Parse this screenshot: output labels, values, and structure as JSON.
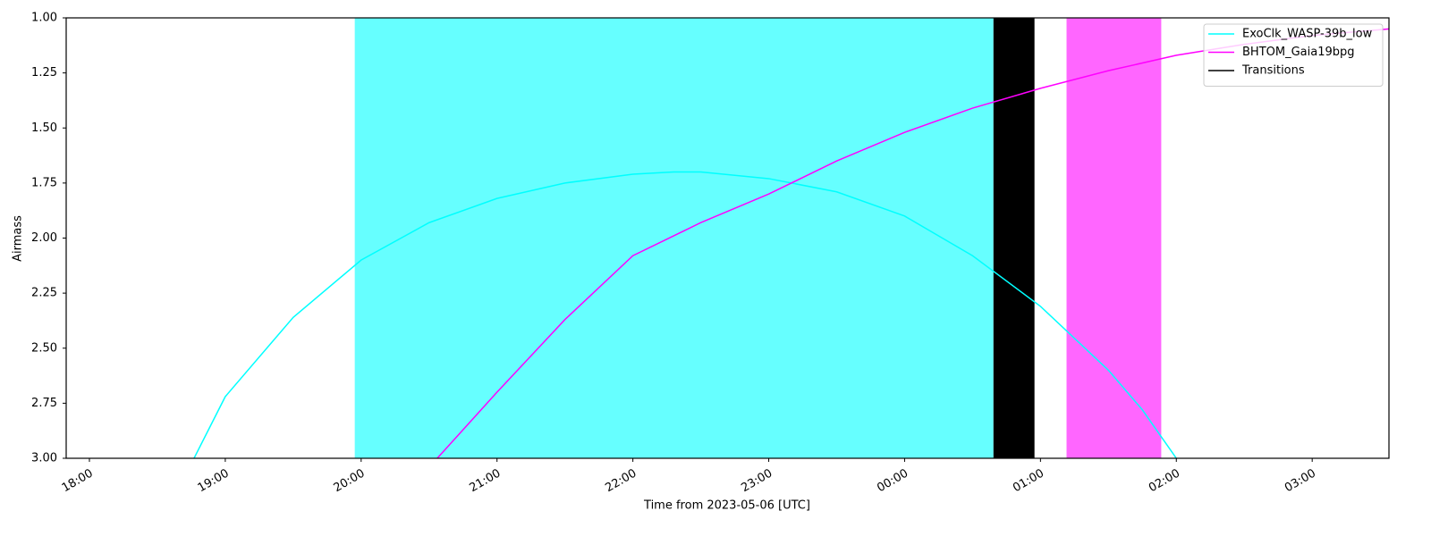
{
  "chart_data": {
    "type": "line",
    "xlabel": "Time from 2023-05-06 [UTC]",
    "ylabel": "Airmass",
    "xlim": [
      17.829,
      27.565
    ],
    "xticks": [
      {
        "value": 18,
        "label": "18:00"
      },
      {
        "value": 19,
        "label": "19:00"
      },
      {
        "value": 20,
        "label": "20:00"
      },
      {
        "value": 21,
        "label": "21:00"
      },
      {
        "value": 22,
        "label": "22:00"
      },
      {
        "value": 23,
        "label": "23:00"
      },
      {
        "value": 24,
        "label": "00:00"
      },
      {
        "value": 25,
        "label": "01:00"
      },
      {
        "value": 26,
        "label": "02:00"
      },
      {
        "value": 27,
        "label": "03:00"
      }
    ],
    "ylim": [
      3,
      1
    ],
    "yticks": [
      {
        "value": 1,
        "label": "1.00"
      },
      1.25,
      {
        "value": 1.5,
        "label": "1.50"
      },
      1.75,
      {
        "value": 2,
        "label": "2.00"
      },
      2.25,
      {
        "value": 2.5,
        "label": "2.50"
      },
      2.75,
      {
        "value": 3,
        "label": "3.00"
      }
    ],
    "legend": "upper right",
    "series": [
      {
        "name": "ExoClk_WASP-39b_low",
        "color": "#00ffff",
        "window": [
          19.953,
          24.654
        ],
        "window_color": "#66ffff",
        "x": [
          18.77,
          19,
          19.5,
          20,
          20.5,
          21,
          21.5,
          22,
          22.3,
          22.5,
          23,
          23.5,
          24,
          24.5,
          25,
          25.5,
          25.75,
          26.0
        ],
        "values": [
          3.0,
          2.72,
          2.36,
          2.1,
          1.93,
          1.82,
          1.75,
          1.71,
          1.7,
          1.7,
          1.73,
          1.79,
          1.9,
          2.08,
          2.31,
          2.6,
          2.78,
          3.0
        ]
      },
      {
        "name": "BHTOM_Gaia19bpg",
        "color": "#ff00ff",
        "window": [
          25.192,
          25.889
        ],
        "window_color": "#ff66ff",
        "x": [
          20.56,
          21,
          21.5,
          22,
          22.5,
          23,
          23.5,
          24,
          24.5,
          25,
          25.5,
          26,
          26.5,
          27,
          27.565
        ],
        "values": [
          3.0,
          2.7,
          2.37,
          2.08,
          1.93,
          1.8,
          1.65,
          1.52,
          1.41,
          1.32,
          1.24,
          1.17,
          1.12,
          1.08,
          1.05
        ]
      }
    ],
    "transitions": {
      "name": "Transitions",
      "color": "#000000",
      "spans": [
        [
          24.654,
          24.956
        ]
      ]
    }
  }
}
